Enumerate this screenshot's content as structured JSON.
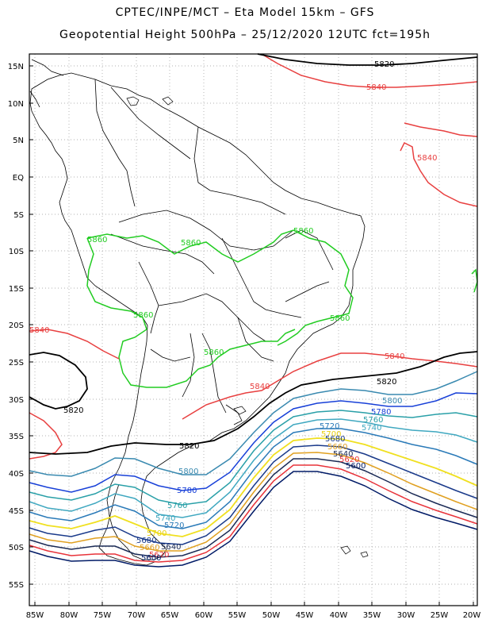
{
  "title_line1": "CPTEC/INPE/MCT –  Eta Model 15km – GFS",
  "title_line2": "Geopotential Height 500hPa – 25/12/2020 12UTC fct=195h",
  "axes": {
    "lat_labels": [
      "15N",
      "10N",
      "5N",
      "EQ",
      "5S",
      "10S",
      "15S",
      "20S",
      "25S",
      "30S",
      "35S",
      "40S",
      "45S",
      "50S",
      "55S"
    ],
    "lon_labels": [
      "85W",
      "80W",
      "75W",
      "70W",
      "65W",
      "60W",
      "55W",
      "50W",
      "45W",
      "40W",
      "35W",
      "30W",
      "25W",
      "20W"
    ]
  },
  "colors": {
    "c5600": "#001a66",
    "c5620": "#e8333a",
    "c5640": "#1a2a55",
    "c5660": "#e0a020",
    "c5680": "#1a3a8a",
    "c5700": "#f0e020",
    "c5720": "#2a7ab8",
    "c5740": "#40a8c0",
    "c5760": "#2aa0a8",
    "c5780": "#1840d8",
    "c5800": "#3a8ab0",
    "c5820": "#000000",
    "c5840": "#e84040",
    "c5860": "#22cc22"
  },
  "contour_labels": {
    "l5820_a": "5820",
    "l5840_a": "5840",
    "l5840_b": "5840",
    "l5860_a": "5860",
    "l5860_b": "5860",
    "l5860_c": "5860",
    "l5860_d": "5860",
    "l5860_e": "5860",
    "l5840_c": "5840",
    "l5840_d": "5840",
    "l5840_e": "5840",
    "l5820_b": "5820",
    "l5820_c": "5820",
    "l5820_d": "5820",
    "l5800_a": "5800",
    "l5780_a": "5780",
    "l5760_a": "5760",
    "l5740_a": "5740",
    "l5720_a": "5720",
    "l5700_a": "5700",
    "l5680_a": "5680",
    "l5660_a": "5660",
    "l5640_a": "5640",
    "l5620_a": "5620",
    "l5600_a": "5600",
    "l5800_b": "5800",
    "l5780_b": "5780",
    "l5760_b": "5760",
    "l5740_b": "5740",
    "l5720_b": "5720",
    "l5700_b": "5700",
    "l5680_b": "5680",
    "l5660_b": "5660",
    "l5640_b": "5640",
    "l5620_b": "5620",
    "l5600_b": "5600"
  }
}
